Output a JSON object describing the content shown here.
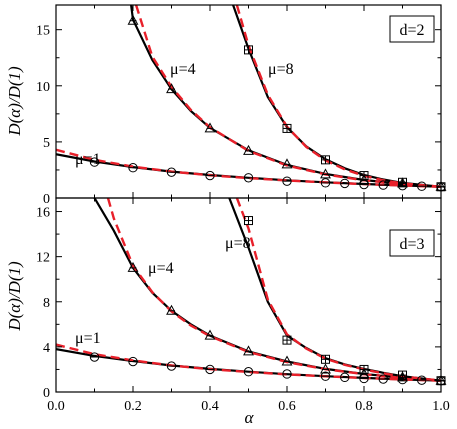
{
  "chart_data": [
    {
      "type": "line",
      "panel": "top",
      "panel_label": "d=2",
      "xlim": [
        0.0,
        1.0
      ],
      "ylim": [
        0,
        17.2
      ],
      "x_ticks": [
        0.0,
        0.2,
        0.4,
        0.6,
        0.8,
        1.0
      ],
      "y_ticks": [
        0,
        5,
        10,
        15
      ],
      "y_tick_labels": [
        "0",
        "5",
        "10",
        "15"
      ],
      "ylabel": "D(α)/D(1)",
      "xlabel": "",
      "series": [
        {
          "name": "μ=1",
          "marker": "circle",
          "x": [
            0.1,
            0.2,
            0.3,
            0.4,
            0.5,
            0.6,
            0.7,
            0.75,
            0.8,
            0.85,
            0.9,
            0.95,
            1.0
          ],
          "y": [
            3.2,
            2.7,
            2.3,
            2.0,
            1.8,
            1.5,
            1.35,
            1.3,
            1.2,
            1.15,
            1.1,
            1.05,
            1.0
          ],
          "fit_black": [
            [
              0.0,
              3.9
            ],
            [
              0.1,
              3.25
            ],
            [
              0.2,
              2.75
            ],
            [
              0.3,
              2.35
            ],
            [
              0.4,
              2.05
            ],
            [
              0.5,
              1.8
            ],
            [
              0.6,
              1.58
            ],
            [
              0.7,
              1.4
            ],
            [
              0.8,
              1.25
            ],
            [
              0.9,
              1.12
            ],
            [
              1.0,
              1.0
            ]
          ],
          "fit_red": [
            [
              0.0,
              4.3
            ],
            [
              0.1,
              3.4
            ],
            [
              0.2,
              2.8
            ],
            [
              0.3,
              2.35
            ],
            [
              0.4,
              2.02
            ],
            [
              0.5,
              1.77
            ],
            [
              0.6,
              1.56
            ],
            [
              0.7,
              1.39
            ],
            [
              0.8,
              1.24
            ],
            [
              0.9,
              1.11
            ],
            [
              1.0,
              1.0
            ]
          ]
        },
        {
          "name": "μ=4",
          "marker": "triangle",
          "x": [
            0.2,
            0.3,
            0.4,
            0.5,
            0.6,
            0.7,
            0.8,
            0.9,
            1.0
          ],
          "y": [
            15.8,
            9.7,
            6.2,
            4.2,
            3.0,
            2.1,
            1.6,
            1.3,
            1.0
          ],
          "fit_black": [
            [
              0.195,
              17.2
            ],
            [
              0.2,
              15.9
            ],
            [
              0.25,
              12.3
            ],
            [
              0.3,
              9.7
            ],
            [
              0.35,
              7.75
            ],
            [
              0.4,
              6.25
            ],
            [
              0.5,
              4.25
            ],
            [
              0.6,
              2.95
            ],
            [
              0.7,
              2.15
            ],
            [
              0.8,
              1.6
            ],
            [
              0.9,
              1.25
            ],
            [
              1.0,
              1.0
            ]
          ],
          "fit_red": [
            [
              0.208,
              17.2
            ],
            [
              0.25,
              12.6
            ],
            [
              0.3,
              9.9
            ],
            [
              0.35,
              7.85
            ],
            [
              0.4,
              6.3
            ],
            [
              0.5,
              4.2
            ],
            [
              0.6,
              2.9
            ],
            [
              0.7,
              2.1
            ],
            [
              0.8,
              1.58
            ],
            [
              0.9,
              1.24
            ],
            [
              1.0,
              1.0
            ]
          ]
        },
        {
          "name": "μ=8",
          "marker": "square",
          "x": [
            0.5,
            0.6,
            0.7,
            0.8,
            0.9,
            1.0
          ],
          "y": [
            13.2,
            6.2,
            3.4,
            2.0,
            1.4,
            1.0
          ],
          "fit_black": [
            [
              0.46,
              17.2
            ],
            [
              0.5,
              13.3
            ],
            [
              0.55,
              9.0
            ],
            [
              0.6,
              6.3
            ],
            [
              0.65,
              4.6
            ],
            [
              0.7,
              3.45
            ],
            [
              0.75,
              2.65
            ],
            [
              0.8,
              2.05
            ],
            [
              0.85,
              1.65
            ],
            [
              0.9,
              1.35
            ],
            [
              1.0,
              1.0
            ]
          ],
          "fit_red": [
            [
              0.47,
              17.2
            ],
            [
              0.5,
              13.6
            ],
            [
              0.55,
              9.2
            ],
            [
              0.6,
              6.35
            ],
            [
              0.65,
              4.55
            ],
            [
              0.7,
              3.35
            ],
            [
              0.75,
              2.55
            ],
            [
              0.8,
              1.98
            ],
            [
              0.85,
              1.58
            ],
            [
              0.9,
              1.3
            ],
            [
              1.0,
              1.0
            ]
          ]
        }
      ]
    },
    {
      "type": "line",
      "panel": "bottom",
      "panel_label": "d=3",
      "xlim": [
        0.0,
        1.0
      ],
      "ylim": [
        0,
        17.2
      ],
      "x_ticks": [
        0.0,
        0.2,
        0.4,
        0.6,
        0.8,
        1.0
      ],
      "x_tick_labels": [
        "0.0",
        "0.2",
        "0.4",
        "0.6",
        "0.8",
        "1.0"
      ],
      "y_ticks": [
        0,
        4,
        8,
        12,
        16
      ],
      "y_tick_labels": [
        "0",
        "4",
        "8",
        "12",
        "16"
      ],
      "ylabel": "D(α)/D(1)",
      "xlabel": "α",
      "series": [
        {
          "name": "μ=1",
          "marker": "circle",
          "x": [
            0.1,
            0.2,
            0.3,
            0.4,
            0.5,
            0.6,
            0.7,
            0.75,
            0.8,
            0.85,
            0.9,
            0.95,
            1.0
          ],
          "y": [
            3.1,
            2.7,
            2.3,
            2.0,
            1.8,
            1.6,
            1.4,
            1.3,
            1.2,
            1.15,
            1.1,
            1.05,
            1.0
          ],
          "fit_black": [
            [
              0.0,
              3.8
            ],
            [
              0.1,
              3.2
            ],
            [
              0.2,
              2.75
            ],
            [
              0.3,
              2.35
            ],
            [
              0.4,
              2.05
            ],
            [
              0.5,
              1.8
            ],
            [
              0.6,
              1.58
            ],
            [
              0.7,
              1.4
            ],
            [
              0.8,
              1.25
            ],
            [
              0.9,
              1.12
            ],
            [
              1.0,
              1.0
            ]
          ],
          "fit_red": [
            [
              0.0,
              4.2
            ],
            [
              0.1,
              3.35
            ],
            [
              0.2,
              2.8
            ],
            [
              0.3,
              2.35
            ],
            [
              0.4,
              2.02
            ],
            [
              0.5,
              1.77
            ],
            [
              0.6,
              1.56
            ],
            [
              0.7,
              1.39
            ],
            [
              0.8,
              1.24
            ],
            [
              0.9,
              1.11
            ],
            [
              1.0,
              1.0
            ]
          ]
        },
        {
          "name": "μ=4",
          "marker": "triangle",
          "x": [
            0.2,
            0.3,
            0.4,
            0.5,
            0.6,
            0.7,
            0.8,
            0.9,
            1.0
          ],
          "y": [
            11.0,
            7.2,
            5.0,
            3.6,
            2.7,
            2.0,
            1.6,
            1.3,
            1.0
          ],
          "fit_black": [
            [
              0.1,
              17.2
            ],
            [
              0.15,
              14.3
            ],
            [
              0.2,
              11.0
            ],
            [
              0.25,
              8.8
            ],
            [
              0.3,
              7.2
            ],
            [
              0.35,
              6.0
            ],
            [
              0.4,
              5.0
            ],
            [
              0.5,
              3.6
            ],
            [
              0.6,
              2.7
            ],
            [
              0.7,
              2.05
            ],
            [
              0.8,
              1.6
            ],
            [
              0.9,
              1.28
            ],
            [
              1.0,
              1.0
            ]
          ],
          "fit_red": [
            [
              0.135,
              17.2
            ],
            [
              0.15,
              15.4
            ],
            [
              0.2,
              11.2
            ],
            [
              0.25,
              8.85
            ],
            [
              0.3,
              7.15
            ],
            [
              0.35,
              5.9
            ],
            [
              0.4,
              4.95
            ],
            [
              0.5,
              3.55
            ],
            [
              0.6,
              2.65
            ],
            [
              0.7,
              2.02
            ],
            [
              0.8,
              1.58
            ],
            [
              0.9,
              1.26
            ],
            [
              1.0,
              1.0
            ]
          ]
        },
        {
          "name": "μ=8",
          "marker": "square",
          "x": [
            0.5,
            0.6,
            0.7,
            0.8,
            0.9,
            1.0
          ],
          "y": [
            15.2,
            4.6,
            2.9,
            2.0,
            1.5,
            1.0
          ],
          "fit_black": [
            [
              0.45,
              17.2
            ],
            [
              0.5,
              12.8
            ],
            [
              0.55,
              8.0
            ],
            [
              0.6,
              5.0
            ],
            [
              0.65,
              3.9
            ],
            [
              0.7,
              3.0
            ],
            [
              0.75,
              2.45
            ],
            [
              0.8,
              2.05
            ],
            [
              0.85,
              1.7
            ],
            [
              0.9,
              1.4
            ],
            [
              1.0,
              1.0
            ]
          ],
          "fit_red": [
            [
              0.47,
              17.2
            ],
            [
              0.5,
              14.5
            ],
            [
              0.55,
              8.2
            ],
            [
              0.6,
              5.1
            ],
            [
              0.65,
              3.85
            ],
            [
              0.7,
              2.95
            ],
            [
              0.75,
              2.4
            ],
            [
              0.8,
              2.0
            ],
            [
              0.85,
              1.65
            ],
            [
              0.9,
              1.38
            ],
            [
              1.0,
              1.0
            ]
          ]
        }
      ]
    }
  ],
  "colors": {
    "fit_black": "#000000",
    "fit_red": "#e8202a",
    "marker": "#000000"
  }
}
